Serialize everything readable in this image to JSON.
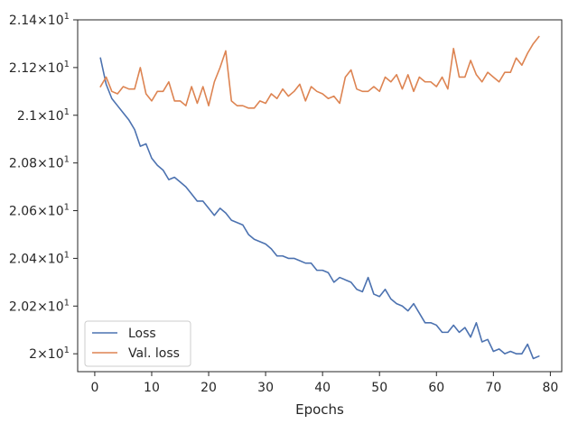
{
  "chart_data": {
    "type": "line",
    "title": "",
    "xlabel": "Epochs",
    "ylabel": "",
    "xlim": [
      -3,
      82
    ],
    "ylim": [
      19.925,
      21.4
    ],
    "x_ticks": [
      0,
      10,
      20,
      30,
      40,
      50,
      60,
      70,
      80
    ],
    "x_tick_labels": [
      "0",
      "10",
      "20",
      "30",
      "40",
      "50",
      "60",
      "70",
      "80"
    ],
    "y_ticks": [
      20.0,
      20.2,
      20.4,
      20.6,
      20.8,
      21.0,
      21.2,
      21.4
    ],
    "y_tick_mantissas": [
      "2",
      "2.02",
      "2.04",
      "2.06",
      "2.08",
      "2.1",
      "2.12",
      "2.14"
    ],
    "y_tick_base": "10",
    "y_tick_exponent": "1",
    "y_tick_times": "×",
    "legend_position": "lower-left",
    "grid": false,
    "x": [
      1,
      2,
      3,
      4,
      5,
      6,
      7,
      8,
      9,
      10,
      11,
      12,
      13,
      14,
      15,
      16,
      17,
      18,
      19,
      20,
      21,
      22,
      23,
      24,
      25,
      26,
      27,
      28,
      29,
      30,
      31,
      32,
      33,
      34,
      35,
      36,
      37,
      38,
      39,
      40,
      41,
      42,
      43,
      44,
      45,
      46,
      47,
      48,
      49,
      50,
      51,
      52,
      53,
      54,
      55,
      56,
      57,
      58,
      59,
      60,
      61,
      62,
      63,
      64,
      65,
      66,
      67,
      68,
      69,
      70,
      71,
      72,
      73,
      74,
      75,
      76,
      77,
      78
    ],
    "series": [
      {
        "name": "Loss",
        "color": "#4c72b0",
        "values": [
          21.24,
          21.13,
          21.07,
          21.04,
          21.01,
          20.98,
          20.94,
          20.87,
          20.88,
          20.82,
          20.79,
          20.77,
          20.73,
          20.74,
          20.72,
          20.7,
          20.67,
          20.64,
          20.64,
          20.61,
          20.58,
          20.61,
          20.59,
          20.56,
          20.55,
          20.54,
          20.5,
          20.48,
          20.47,
          20.46,
          20.44,
          20.41,
          20.41,
          20.4,
          20.4,
          20.39,
          20.38,
          20.38,
          20.35,
          20.35,
          20.34,
          20.3,
          20.32,
          20.31,
          20.3,
          20.27,
          20.26,
          20.32,
          20.25,
          20.24,
          20.27,
          20.23,
          20.21,
          20.2,
          20.18,
          20.21,
          20.17,
          20.13,
          20.13,
          20.12,
          20.09,
          20.09,
          20.12,
          20.09,
          20.11,
          20.07,
          20.13,
          20.05,
          20.06,
          20.01,
          20.02,
          20.0,
          20.01,
          20.0,
          20.0,
          20.04,
          19.98,
          19.99
        ]
      },
      {
        "name": "Val. loss",
        "color": "#dd8452",
        "values": [
          21.12,
          21.16,
          21.1,
          21.09,
          21.12,
          21.11,
          21.11,
          21.2,
          21.09,
          21.06,
          21.1,
          21.1,
          21.14,
          21.06,
          21.06,
          21.04,
          21.12,
          21.05,
          21.12,
          21.04,
          21.14,
          21.2,
          21.27,
          21.06,
          21.04,
          21.04,
          21.03,
          21.03,
          21.06,
          21.05,
          21.09,
          21.07,
          21.11,
          21.08,
          21.1,
          21.13,
          21.06,
          21.12,
          21.1,
          21.09,
          21.07,
          21.08,
          21.05,
          21.16,
          21.19,
          21.11,
          21.1,
          21.1,
          21.12,
          21.1,
          21.16,
          21.14,
          21.17,
          21.11,
          21.17,
          21.1,
          21.16,
          21.14,
          21.14,
          21.12,
          21.16,
          21.11,
          21.28,
          21.16,
          21.16,
          21.23,
          21.17,
          21.14,
          21.18,
          21.16,
          21.14,
          21.18,
          21.18,
          21.24,
          21.21,
          21.26,
          21.3,
          21.33
        ]
      }
    ]
  }
}
